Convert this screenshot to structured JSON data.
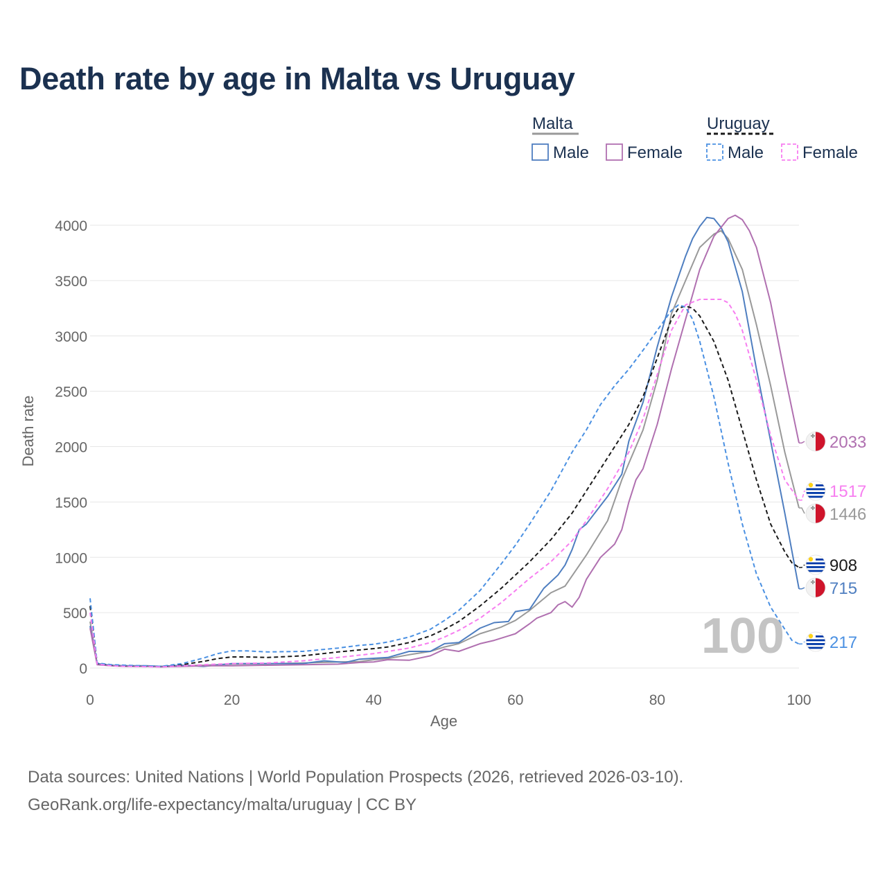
{
  "title": "Death rate by age in Malta vs Uruguay",
  "legend": {
    "groups": [
      {
        "name": "Malta",
        "style": "solid",
        "items": [
          {
            "label": "Male",
            "color": "#4e7ec0"
          },
          {
            "label": "Female",
            "color": "#b070b0"
          }
        ]
      },
      {
        "name": "Uruguay",
        "style": "dashed",
        "items": [
          {
            "label": "Male",
            "color": "#4a90e2"
          },
          {
            "label": "Female",
            "color": "#f77ef0"
          }
        ]
      }
    ]
  },
  "watermark": "100",
  "footer": {
    "source": "Data sources: United Nations | World Population Prospects (2026, retrieved 2026-03-10).",
    "credit": "GeoRank.org/life-expectancy/malta/uruguay | CC BY"
  },
  "chart_data": {
    "type": "line",
    "title": "Death rate by age in Malta vs Uruguay",
    "xlabel": "Age",
    "ylabel": "Death rate",
    "xlim": [
      0,
      100
    ],
    "ylim": [
      0,
      4100
    ],
    "xticks": [
      0,
      20,
      40,
      60,
      80,
      100
    ],
    "yticks": [
      0,
      500,
      1000,
      1500,
      2000,
      2500,
      3000,
      3500,
      4000
    ],
    "series": [
      {
        "name": "Malta total",
        "country": "Malta",
        "color": "#999999",
        "dash": false,
        "end_label": "1446",
        "end_value": 1446,
        "flag": "malta",
        "points": [
          [
            0,
            420
          ],
          [
            1,
            35
          ],
          [
            3,
            22
          ],
          [
            5,
            18
          ],
          [
            8,
            18
          ],
          [
            10,
            12
          ],
          [
            13,
            20
          ],
          [
            16,
            25
          ],
          [
            20,
            35
          ],
          [
            25,
            38
          ],
          [
            30,
            45
          ],
          [
            35,
            55
          ],
          [
            38,
            58
          ],
          [
            40,
            75
          ],
          [
            42,
            85
          ],
          [
            45,
            120
          ],
          [
            48,
            150
          ],
          [
            50,
            190
          ],
          [
            52,
            220
          ],
          [
            55,
            310
          ],
          [
            58,
            370
          ],
          [
            60,
            430
          ],
          [
            62,
            520
          ],
          [
            65,
            680
          ],
          [
            67,
            740
          ],
          [
            70,
            1020
          ],
          [
            73,
            1330
          ],
          [
            75,
            1700
          ],
          [
            78,
            2150
          ],
          [
            80,
            2600
          ],
          [
            82,
            3200
          ],
          [
            84,
            3500
          ],
          [
            86,
            3800
          ],
          [
            88,
            3920
          ],
          [
            89,
            3950
          ],
          [
            90,
            3880
          ],
          [
            92,
            3600
          ],
          [
            94,
            3100
          ],
          [
            96,
            2550
          ],
          [
            98,
            1950
          ],
          [
            100,
            1446
          ]
        ]
      },
      {
        "name": "Malta Male",
        "country": "Malta",
        "color": "#4e7ec0",
        "dash": false,
        "end_label": "715",
        "end_value": 715,
        "flag": "malta",
        "points": [
          [
            0,
            380
          ],
          [
            1,
            40
          ],
          [
            3,
            25
          ],
          [
            5,
            20
          ],
          [
            8,
            20
          ],
          [
            10,
            15
          ],
          [
            13,
            25
          ],
          [
            16,
            15
          ],
          [
            20,
            40
          ],
          [
            25,
            40
          ],
          [
            30,
            40
          ],
          [
            33,
            65
          ],
          [
            36,
            50
          ],
          [
            38,
            80
          ],
          [
            42,
            95
          ],
          [
            45,
            150
          ],
          [
            48,
            150
          ],
          [
            50,
            220
          ],
          [
            52,
            230
          ],
          [
            55,
            360
          ],
          [
            57,
            410
          ],
          [
            59,
            420
          ],
          [
            60,
            510
          ],
          [
            62,
            530
          ],
          [
            64,
            720
          ],
          [
            66,
            840
          ],
          [
            67,
            930
          ],
          [
            68,
            1070
          ],
          [
            69,
            1250
          ],
          [
            70,
            1300
          ],
          [
            73,
            1550
          ],
          [
            75,
            1750
          ],
          [
            76,
            2050
          ],
          [
            78,
            2400
          ],
          [
            80,
            2900
          ],
          [
            82,
            3350
          ],
          [
            84,
            3720
          ],
          [
            85,
            3880
          ],
          [
            86,
            3990
          ],
          [
            87,
            4070
          ],
          [
            88,
            4060
          ],
          [
            89,
            3980
          ],
          [
            90,
            3850
          ],
          [
            92,
            3400
          ],
          [
            94,
            2700
          ],
          [
            96,
            2050
          ],
          [
            98,
            1400
          ],
          [
            100,
            715
          ]
        ]
      },
      {
        "name": "Malta Female",
        "country": "Malta",
        "color": "#b070b0",
        "dash": false,
        "end_label": "2033",
        "end_value": 2033,
        "flag": "malta",
        "points": [
          [
            0,
            360
          ],
          [
            1,
            30
          ],
          [
            3,
            20
          ],
          [
            5,
            15
          ],
          [
            8,
            15
          ],
          [
            10,
            10
          ],
          [
            13,
            15
          ],
          [
            16,
            20
          ],
          [
            20,
            20
          ],
          [
            25,
            25
          ],
          [
            30,
            30
          ],
          [
            35,
            35
          ],
          [
            38,
            50
          ],
          [
            40,
            55
          ],
          [
            42,
            75
          ],
          [
            45,
            70
          ],
          [
            48,
            110
          ],
          [
            50,
            170
          ],
          [
            52,
            150
          ],
          [
            55,
            220
          ],
          [
            57,
            250
          ],
          [
            59,
            290
          ],
          [
            60,
            310
          ],
          [
            62,
            400
          ],
          [
            63,
            450
          ],
          [
            65,
            500
          ],
          [
            66,
            570
          ],
          [
            67,
            600
          ],
          [
            68,
            550
          ],
          [
            69,
            640
          ],
          [
            70,
            800
          ],
          [
            72,
            1000
          ],
          [
            74,
            1120
          ],
          [
            75,
            1250
          ],
          [
            76,
            1500
          ],
          [
            77,
            1700
          ],
          [
            78,
            1800
          ],
          [
            80,
            2200
          ],
          [
            82,
            2700
          ],
          [
            84,
            3150
          ],
          [
            86,
            3600
          ],
          [
            88,
            3900
          ],
          [
            90,
            4060
          ],
          [
            91,
            4090
          ],
          [
            92,
            4050
          ],
          [
            93,
            3950
          ],
          [
            94,
            3800
          ],
          [
            96,
            3300
          ],
          [
            98,
            2650
          ],
          [
            100,
            2033
          ]
        ]
      },
      {
        "name": "Uruguay total",
        "country": "Uruguay",
        "color": "#1a1a1a",
        "dash": true,
        "end_label": "908",
        "end_value": 908,
        "flag": "uruguay",
        "points": [
          [
            0,
            560
          ],
          [
            1,
            40
          ],
          [
            3,
            25
          ],
          [
            5,
            20
          ],
          [
            10,
            15
          ],
          [
            13,
            30
          ],
          [
            16,
            60
          ],
          [
            18,
            85
          ],
          [
            20,
            100
          ],
          [
            22,
            100
          ],
          [
            25,
            95
          ],
          [
            30,
            110
          ],
          [
            35,
            145
          ],
          [
            40,
            175
          ],
          [
            42,
            190
          ],
          [
            45,
            230
          ],
          [
            48,
            290
          ],
          [
            50,
            350
          ],
          [
            52,
            420
          ],
          [
            55,
            560
          ],
          [
            58,
            720
          ],
          [
            60,
            840
          ],
          [
            62,
            960
          ],
          [
            65,
            1160
          ],
          [
            68,
            1400
          ],
          [
            70,
            1600
          ],
          [
            73,
            1900
          ],
          [
            76,
            2200
          ],
          [
            78,
            2450
          ],
          [
            80,
            2800
          ],
          [
            82,
            3150
          ],
          [
            83,
            3250
          ],
          [
            84,
            3270
          ],
          [
            85,
            3250
          ],
          [
            86,
            3180
          ],
          [
            88,
            2950
          ],
          [
            90,
            2600
          ],
          [
            92,
            2150
          ],
          [
            94,
            1700
          ],
          [
            96,
            1300
          ],
          [
            98,
            1050
          ],
          [
            99,
            950
          ],
          [
            100,
            908
          ]
        ]
      },
      {
        "name": "Uruguay Male",
        "country": "Uruguay",
        "color": "#4a90e2",
        "dash": true,
        "end_label": "217",
        "end_value": 217,
        "flag": "uruguay",
        "points": [
          [
            0,
            630
          ],
          [
            1,
            45
          ],
          [
            3,
            30
          ],
          [
            5,
            25
          ],
          [
            10,
            15
          ],
          [
            13,
            40
          ],
          [
            16,
            90
          ],
          [
            18,
            130
          ],
          [
            20,
            155
          ],
          [
            22,
            155
          ],
          [
            25,
            145
          ],
          [
            30,
            150
          ],
          [
            35,
            180
          ],
          [
            38,
            205
          ],
          [
            40,
            215
          ],
          [
            42,
            235
          ],
          [
            45,
            280
          ],
          [
            48,
            350
          ],
          [
            50,
            430
          ],
          [
            52,
            520
          ],
          [
            55,
            700
          ],
          [
            58,
            940
          ],
          [
            60,
            1110
          ],
          [
            62,
            1300
          ],
          [
            65,
            1600
          ],
          [
            68,
            1950
          ],
          [
            70,
            2150
          ],
          [
            72,
            2380
          ],
          [
            74,
            2550
          ],
          [
            76,
            2700
          ],
          [
            78,
            2870
          ],
          [
            80,
            3050
          ],
          [
            82,
            3230
          ],
          [
            83,
            3280
          ],
          [
            84,
            3260
          ],
          [
            85,
            3150
          ],
          [
            86,
            2950
          ],
          [
            88,
            2450
          ],
          [
            90,
            1850
          ],
          [
            92,
            1300
          ],
          [
            94,
            850
          ],
          [
            96,
            550
          ],
          [
            98,
            350
          ],
          [
            99,
            250
          ],
          [
            100,
            217
          ]
        ]
      },
      {
        "name": "Uruguay Female",
        "country": "Uruguay",
        "color": "#f77ef0",
        "dash": true,
        "end_label": "1517",
        "end_value": 1517,
        "flag": "uruguay",
        "points": [
          [
            0,
            500
          ],
          [
            1,
            35
          ],
          [
            3,
            20
          ],
          [
            5,
            15
          ],
          [
            10,
            10
          ],
          [
            13,
            20
          ],
          [
            16,
            30
          ],
          [
            20,
            40
          ],
          [
            25,
            45
          ],
          [
            30,
            65
          ],
          [
            35,
            95
          ],
          [
            40,
            130
          ],
          [
            42,
            150
          ],
          [
            45,
            180
          ],
          [
            48,
            230
          ],
          [
            50,
            280
          ],
          [
            52,
            340
          ],
          [
            55,
            450
          ],
          [
            58,
            590
          ],
          [
            60,
            700
          ],
          [
            62,
            810
          ],
          [
            65,
            960
          ],
          [
            68,
            1150
          ],
          [
            70,
            1330
          ],
          [
            73,
            1620
          ],
          [
            76,
            1950
          ],
          [
            78,
            2250
          ],
          [
            80,
            2650
          ],
          [
            82,
            3050
          ],
          [
            84,
            3280
          ],
          [
            86,
            3330
          ],
          [
            88,
            3330
          ],
          [
            89,
            3330
          ],
          [
            90,
            3300
          ],
          [
            91,
            3200
          ],
          [
            92,
            3050
          ],
          [
            94,
            2600
          ],
          [
            96,
            2100
          ],
          [
            98,
            1700
          ],
          [
            100,
            1517
          ]
        ]
      }
    ]
  }
}
